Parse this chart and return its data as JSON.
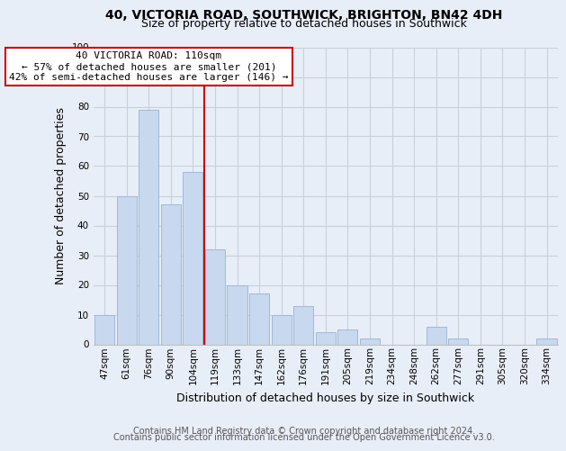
{
  "title1": "40, VICTORIA ROAD, SOUTHWICK, BRIGHTON, BN42 4DH",
  "title2": "Size of property relative to detached houses in Southwick",
  "xlabel": "Distribution of detached houses by size in Southwick",
  "ylabel": "Number of detached properties",
  "bar_labels": [
    "47sqm",
    "61sqm",
    "76sqm",
    "90sqm",
    "104sqm",
    "119sqm",
    "133sqm",
    "147sqm",
    "162sqm",
    "176sqm",
    "191sqm",
    "205sqm",
    "219sqm",
    "234sqm",
    "248sqm",
    "262sqm",
    "277sqm",
    "291sqm",
    "305sqm",
    "320sqm",
    "334sqm"
  ],
  "bar_values": [
    10,
    50,
    79,
    47,
    58,
    32,
    20,
    17,
    10,
    13,
    4,
    5,
    2,
    0,
    0,
    6,
    2,
    0,
    0,
    0,
    2
  ],
  "bar_color": "#c8d8ee",
  "bar_edge_color": "#a0b8d8",
  "vline_x": 4.5,
  "vline_color": "#cc0000",
  "annotation_line1": "40 VICTORIA ROAD: 110sqm",
  "annotation_line2": "← 57% of detached houses are smaller (201)",
  "annotation_line3": "42% of semi-detached houses are larger (146) →",
  "annotation_box_color": "#ffffff",
  "annotation_box_edge": "#cc0000",
  "ylim": [
    0,
    100
  ],
  "yticks": [
    0,
    10,
    20,
    30,
    40,
    50,
    60,
    70,
    80,
    90,
    100
  ],
  "footer1": "Contains HM Land Registry data © Crown copyright and database right 2024.",
  "footer2": "Contains public sector information licensed under the Open Government Licence v3.0.",
  "bg_color": "#e8eef8",
  "plot_bg_color": "#e8eef8",
  "grid_color": "#c8d0dc",
  "title_fontsize": 10,
  "subtitle_fontsize": 9,
  "axis_label_fontsize": 9,
  "tick_fontsize": 7.5,
  "footer_fontsize": 7
}
